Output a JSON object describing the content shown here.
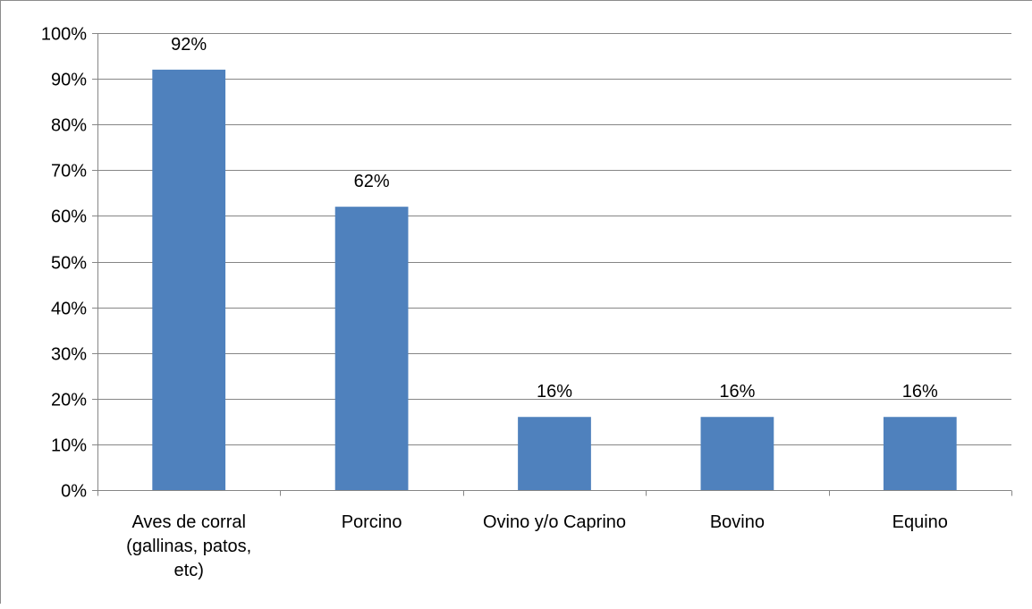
{
  "chart_data": {
    "type": "bar",
    "title": "",
    "xlabel": "",
    "ylabel": "",
    "categories": [
      [
        "Aves de corral",
        "(gallinas, patos,",
        "etc)"
      ],
      [
        "Porcino"
      ],
      [
        "Ovino y/o Caprino"
      ],
      [
        "Bovino"
      ],
      [
        "Equino"
      ]
    ],
    "values": [
      92,
      62,
      16,
      16,
      16
    ],
    "data_labels": [
      "92%",
      "62%",
      "16%",
      "16%",
      "16%"
    ],
    "ylim": [
      0,
      100
    ],
    "yticks": [
      0,
      10,
      20,
      30,
      40,
      50,
      60,
      70,
      80,
      90,
      100
    ],
    "ytick_labels": [
      "0%",
      "10%",
      "20%",
      "30%",
      "40%",
      "50%",
      "60%",
      "70%",
      "80%",
      "90%",
      "100%"
    ],
    "grid": true,
    "legend": "none",
    "colors": {
      "bar": "#4f81bd",
      "grid": "#868686",
      "axis": "#868686",
      "text": "#000000"
    }
  }
}
